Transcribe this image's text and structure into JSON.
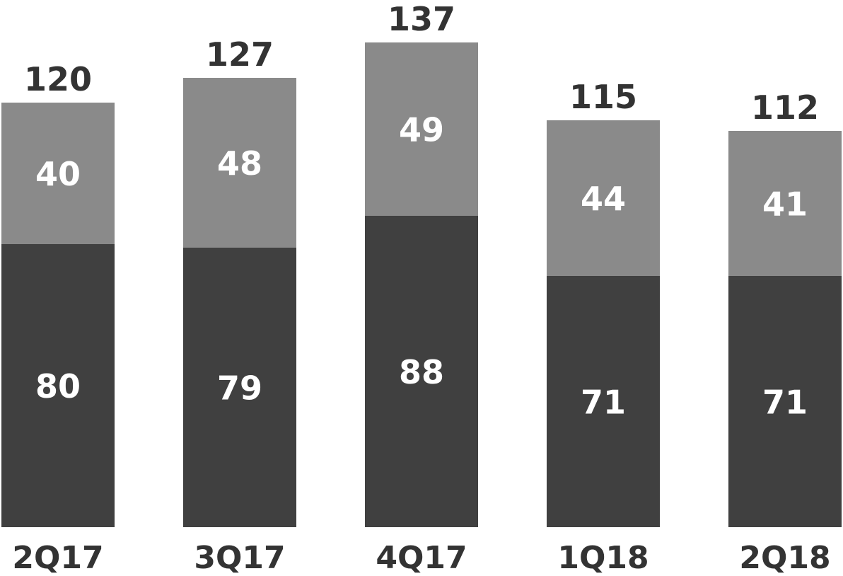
{
  "chart_data": {
    "type": "bar",
    "stacked": true,
    "categories": [
      "2Q17",
      "3Q17",
      "4Q17",
      "1Q18",
      "2Q18"
    ],
    "series": [
      {
        "values": [
          80,
          79,
          88,
          71,
          71
        ],
        "color": "#404040"
      },
      {
        "values": [
          40,
          48,
          49,
          44,
          41
        ],
        "color": "#8a8a8a"
      }
    ],
    "totals": [
      120,
      127,
      137,
      115,
      112
    ],
    "title": "",
    "xlabel": "",
    "ylabel": "",
    "ylim": [
      0,
      137
    ],
    "grid": false,
    "legend": "none"
  },
  "colors": {
    "segment_label": "#ffffff",
    "total_label": "#333333",
    "category_label": "#333333",
    "background": "#ffffff"
  }
}
